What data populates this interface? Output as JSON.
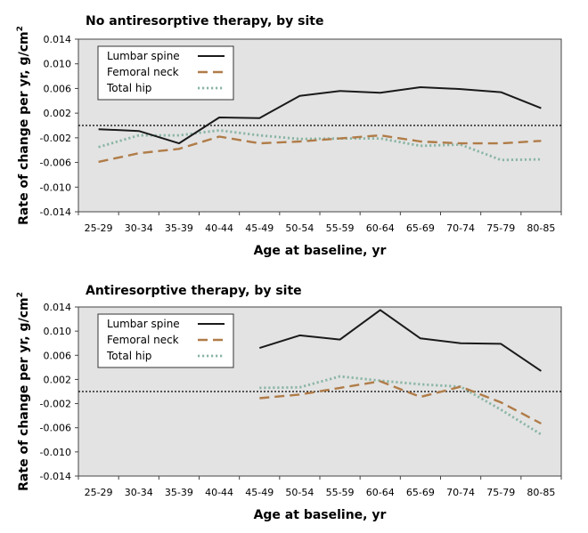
{
  "chart_data": [
    {
      "type": "line",
      "title": "No antiresorptive therapy, by site",
      "xlabel": "Age at baseline, yr",
      "ylabel": "Rate of change per yr, g/cm",
      "ylabel_superscript": "2",
      "ylim": [
        -0.014,
        0.014
      ],
      "yticks": [
        0.014,
        0.01,
        0.006,
        0.002,
        -0.002,
        -0.006,
        -0.01,
        -0.014
      ],
      "ytick_labels": [
        "0.014",
        "0.010",
        "0.006",
        "0.002",
        "-0.002",
        "-0.006",
        "-0.010",
        "-0.014"
      ],
      "reference_line": 0,
      "categories": [
        "25-29",
        "30-34",
        "35-39",
        "40-44",
        "45-49",
        "50-54",
        "55-59",
        "60-64",
        "65-69",
        "70-74",
        "75-79",
        "80-85"
      ],
      "legend_position": "top-left",
      "series": [
        {
          "name": "Lumbar spine",
          "color": "#1a1a1a",
          "dash": "solid",
          "values": [
            -0.0006,
            -0.0009,
            -0.0029,
            0.0013,
            0.0012,
            0.0048,
            0.0056,
            0.0053,
            0.0062,
            0.0059,
            0.0054,
            0.0028
          ]
        },
        {
          "name": "Femoral neck",
          "color": "#b07c48",
          "dash": "dashed",
          "values": [
            -0.0059,
            -0.0045,
            -0.0038,
            -0.0018,
            -0.0029,
            -0.0026,
            -0.0021,
            -0.0016,
            -0.0026,
            -0.0029,
            -0.0029,
            -0.0025
          ]
        },
        {
          "name": "Total hip",
          "color": "#8ab5a4",
          "dash": "dotted",
          "values": [
            -0.0035,
            -0.0016,
            -0.0016,
            -0.0008,
            -0.0016,
            -0.0022,
            -0.0021,
            -0.0021,
            -0.0033,
            -0.0031,
            -0.0056,
            -0.0055
          ]
        }
      ]
    },
    {
      "type": "line",
      "title": "Antiresorptive therapy, by site",
      "xlabel": "Age at baseline, yr",
      "ylabel": "Rate of change per yr, g/cm",
      "ylabel_superscript": "2",
      "ylim": [
        -0.014,
        0.014
      ],
      "yticks": [
        0.014,
        0.01,
        0.006,
        0.002,
        -0.002,
        -0.006,
        -0.01,
        -0.014
      ],
      "ytick_labels": [
        "0.014",
        "0.010",
        "0.006",
        "0.002",
        "-0.002",
        "-0.006",
        "-0.010",
        "-0.014"
      ],
      "reference_line": 0,
      "categories": [
        "25-29",
        "30-34",
        "35-39",
        "40-44",
        "45-49",
        "50-54",
        "55-59",
        "60-64",
        "65-69",
        "70-74",
        "75-79",
        "80-85"
      ],
      "legend_position": "top-left",
      "series": [
        {
          "name": "Lumbar spine",
          "color": "#1a1a1a",
          "dash": "solid",
          "values": [
            null,
            null,
            null,
            null,
            0.0072,
            0.0093,
            0.0086,
            0.0135,
            0.0088,
            0.008,
            0.0079,
            0.0034
          ]
        },
        {
          "name": "Femoral neck",
          "color": "#b07c48",
          "dash": "dashed",
          "values": [
            null,
            null,
            null,
            null,
            -0.0011,
            -0.0005,
            0.0006,
            0.0017,
            -0.0009,
            0.0008,
            -0.0018,
            -0.0053
          ]
        },
        {
          "name": "Total hip",
          "color": "#8ab5a4",
          "dash": "dotted",
          "values": [
            null,
            null,
            null,
            null,
            0.0006,
            0.0007,
            0.0025,
            0.0018,
            0.0012,
            0.0008,
            -0.003,
            -0.0071
          ]
        }
      ]
    }
  ]
}
